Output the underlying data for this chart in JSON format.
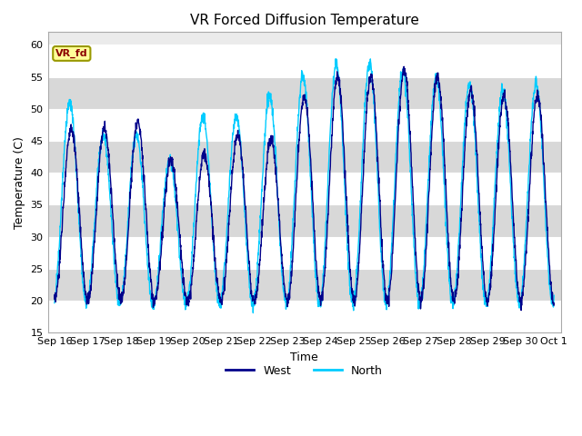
{
  "title": "VR Forced Diffusion Temperature",
  "xlabel": "Time",
  "ylabel": "Temperature (C)",
  "ylim": [
    15,
    62
  ],
  "yticks": [
    15,
    20,
    25,
    30,
    35,
    40,
    45,
    50,
    55,
    60
  ],
  "annotation_text": "VR_fd",
  "annotation_color": "#8B0000",
  "annotation_bg": "#FFFF99",
  "annotation_edge": "#999900",
  "line_west_color": "#00008B",
  "line_north_color": "#00CCFF",
  "line_width": 1.0,
  "legend_west": "West",
  "legend_north": "North",
  "xtick_labels": [
    "Sep 16",
    "Sep 17",
    "Sep 18",
    "Sep 19",
    "Sep 20",
    "Sep 21",
    "Sep 22",
    "Sep 23",
    "Sep 24",
    "Sep 25",
    "Sep 26",
    "Sep 27",
    "Sep 28",
    "Sep 29",
    "Sep 30",
    "Oct 1"
  ],
  "bg_color": "#E8E8E8",
  "band_light": "#EBEBEB",
  "band_dark": "#D8D8D8",
  "grid_color": "#FFFFFF",
  "fig_bg": "#FFFFFF"
}
